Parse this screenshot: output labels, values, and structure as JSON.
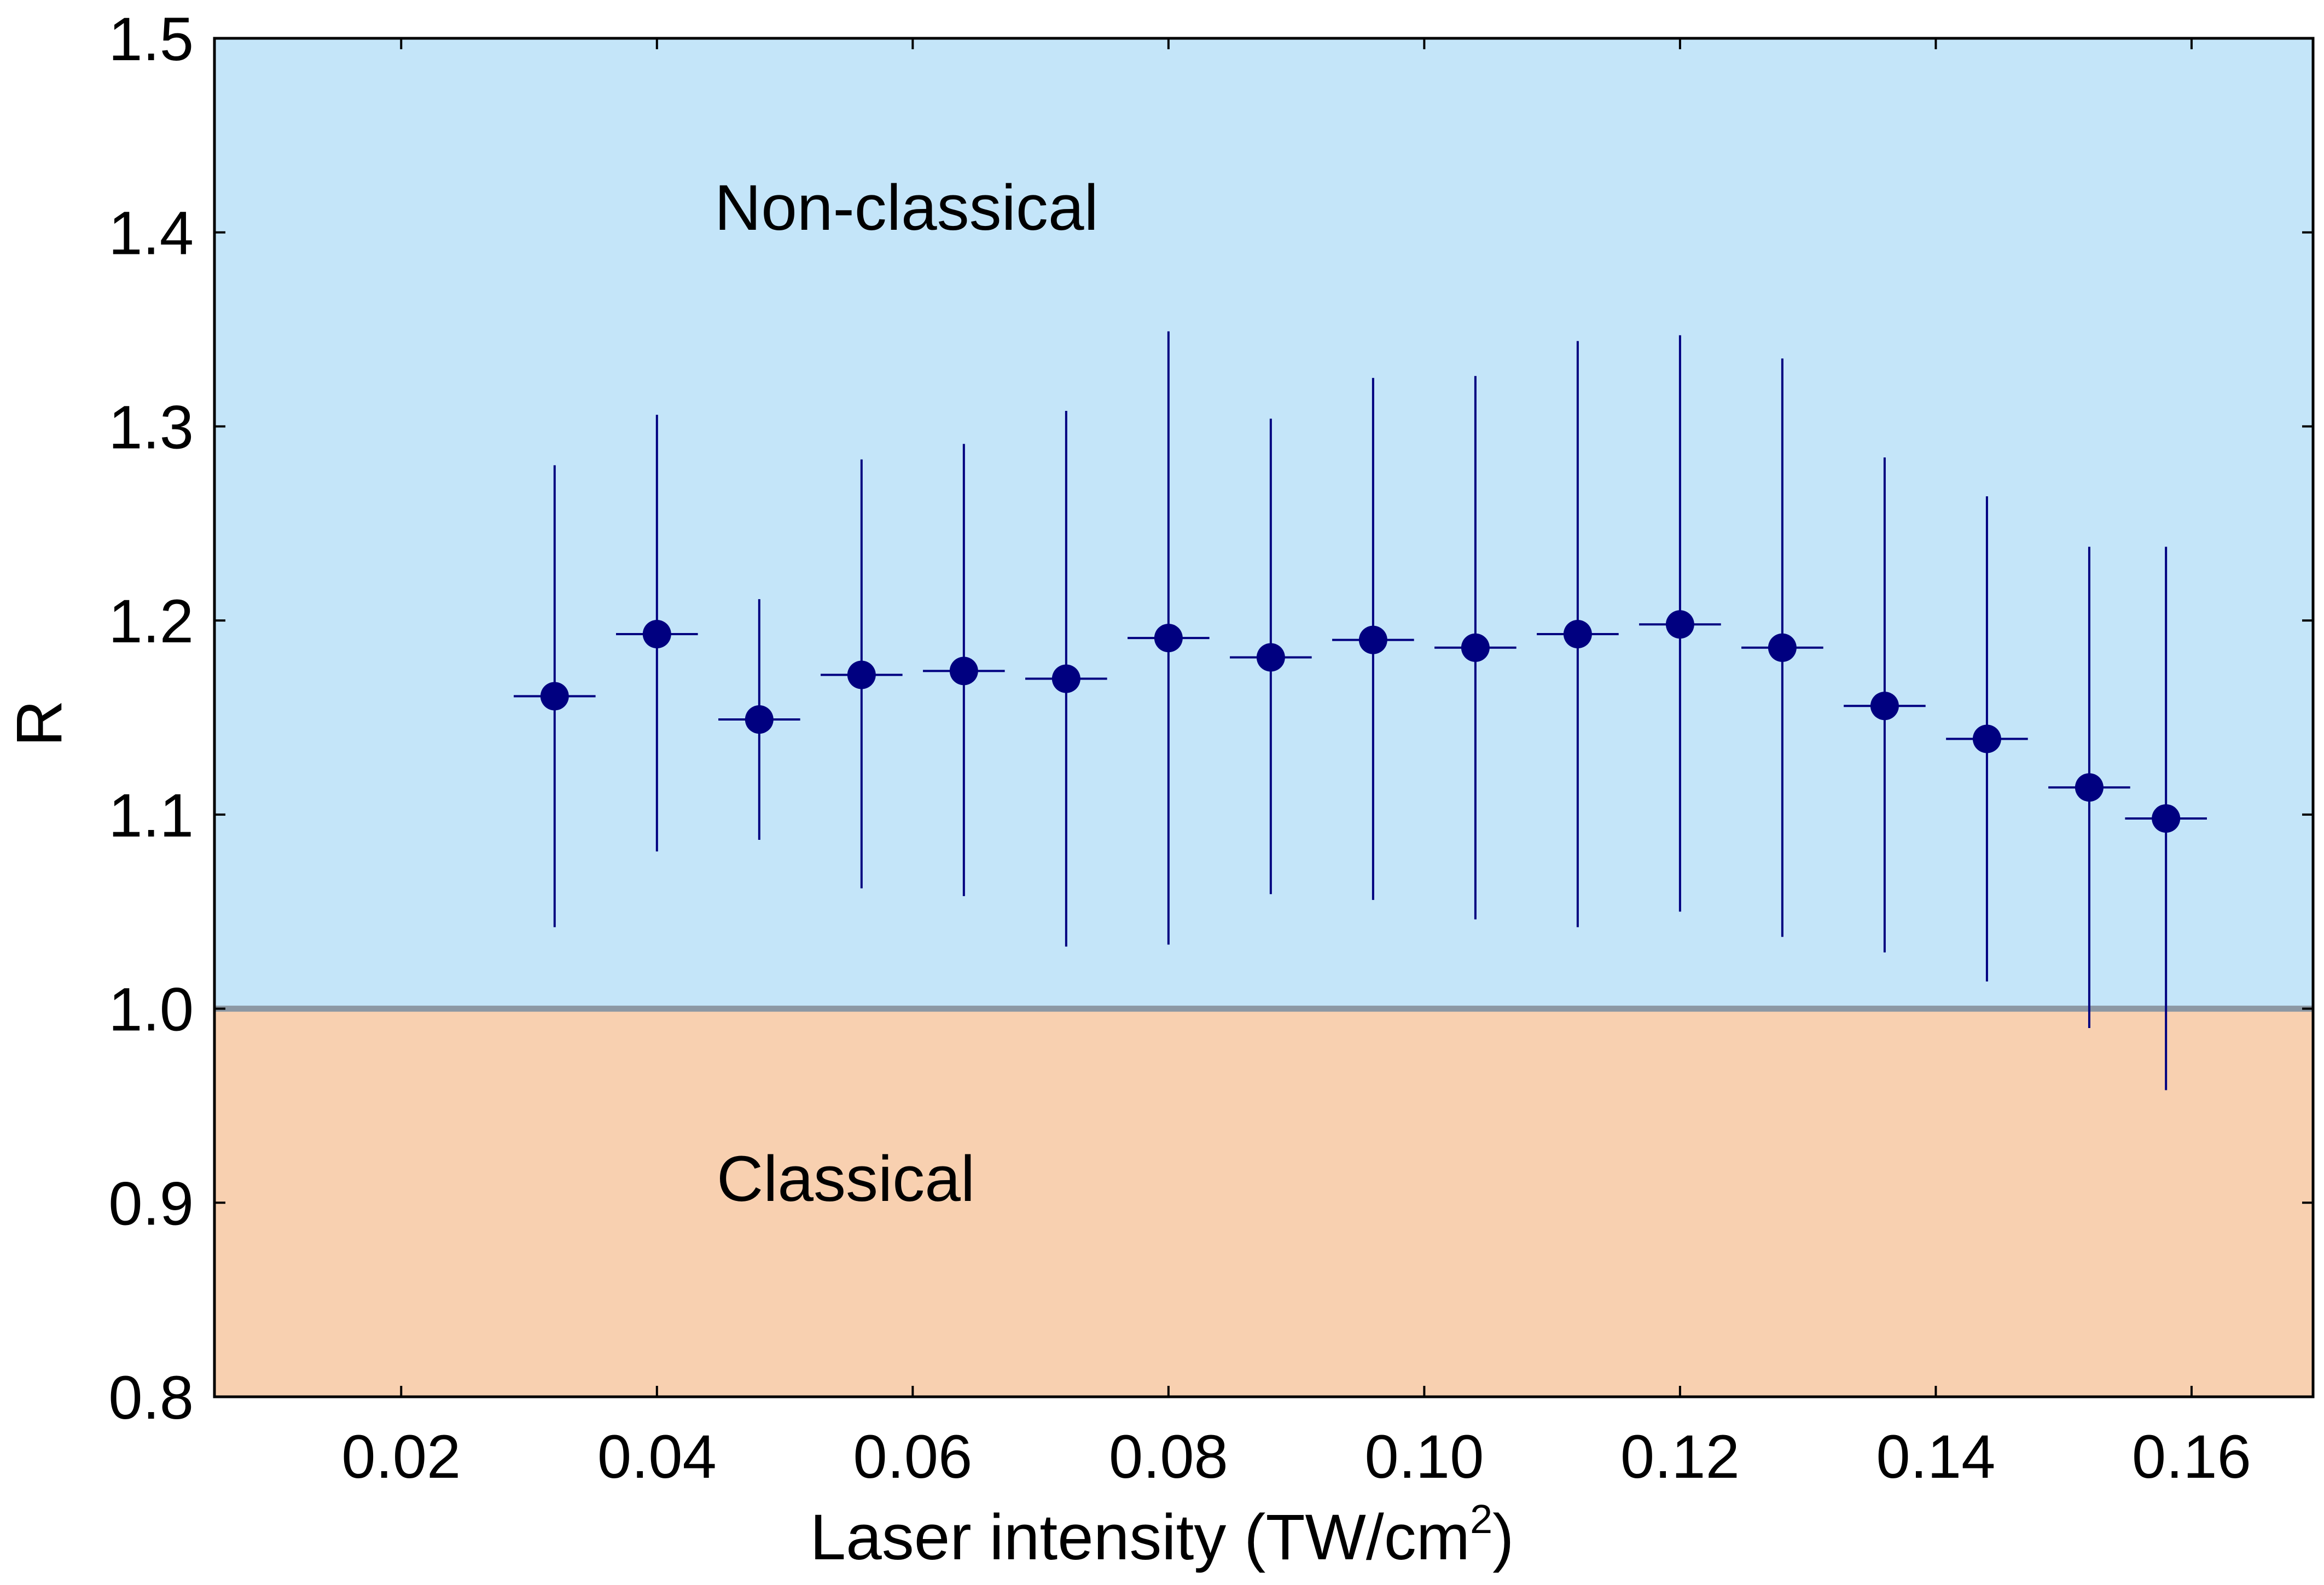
{
  "chart_data": {
    "type": "scatter",
    "xlabel": "Laser intensity (TW/cm",
    "xlabel_sup": "2",
    "xlabel_suffix": ")",
    "ylabel": "R",
    "xlim": [
      0.0054,
      0.1695
    ],
    "ylim": [
      0.8,
      1.5
    ],
    "x_ticks": [
      "0.02",
      "0.04",
      "0.06",
      "0.08",
      "0.10",
      "0.12",
      "0.14",
      "0.16"
    ],
    "y_ticks": [
      "0.8",
      "0.9",
      "1.0",
      "1.1",
      "1.2",
      "1.3",
      "1.4",
      "1.5"
    ],
    "grid": false,
    "threshold": 1.0,
    "regions": [
      {
        "label": "Non-classical",
        "from": 1.0,
        "to": 1.5,
        "color": "#c4e5f9"
      },
      {
        "label": "Classical",
        "from": 0.8,
        "to": 1.0,
        "color": "#f8d0b0"
      }
    ],
    "colors": {
      "marker": "#000080",
      "threshold_line": "#8c98a4",
      "axis": "#000000"
    },
    "points": [
      {
        "x": 0.032,
        "y": 1.161,
        "y_low": 1.042,
        "y_high": 1.28,
        "x_err": 0.0032
      },
      {
        "x": 0.04,
        "y": 1.193,
        "y_low": 1.081,
        "y_high": 1.306,
        "x_err": 0.0032
      },
      {
        "x": 0.048,
        "y": 1.149,
        "y_low": 1.087,
        "y_high": 1.211,
        "x_err": 0.0032
      },
      {
        "x": 0.056,
        "y": 1.172,
        "y_low": 1.062,
        "y_high": 1.283,
        "x_err": 0.0032
      },
      {
        "x": 0.064,
        "y": 1.174,
        "y_low": 1.058,
        "y_high": 1.291,
        "x_err": 0.0032
      },
      {
        "x": 0.072,
        "y": 1.17,
        "y_low": 1.032,
        "y_high": 1.308,
        "x_err": 0.0032
      },
      {
        "x": 0.08,
        "y": 1.191,
        "y_low": 1.033,
        "y_high": 1.349,
        "x_err": 0.0032
      },
      {
        "x": 0.088,
        "y": 1.181,
        "y_low": 1.059,
        "y_high": 1.304,
        "x_err": 0.0032
      },
      {
        "x": 0.096,
        "y": 1.19,
        "y_low": 1.056,
        "y_high": 1.325,
        "x_err": 0.0032
      },
      {
        "x": 0.104,
        "y": 1.186,
        "y_low": 1.046,
        "y_high": 1.326,
        "x_err": 0.0032
      },
      {
        "x": 0.112,
        "y": 1.193,
        "y_low": 1.042,
        "y_high": 1.344,
        "x_err": 0.0032
      },
      {
        "x": 0.12,
        "y": 1.198,
        "y_low": 1.05,
        "y_high": 1.347,
        "x_err": 0.0032
      },
      {
        "x": 0.128,
        "y": 1.186,
        "y_low": 1.037,
        "y_high": 1.335,
        "x_err": 0.0032
      },
      {
        "x": 0.136,
        "y": 1.156,
        "y_low": 1.029,
        "y_high": 1.284,
        "x_err": 0.0032
      },
      {
        "x": 0.144,
        "y": 1.139,
        "y_low": 1.014,
        "y_high": 1.264,
        "x_err": 0.0032
      },
      {
        "x": 0.152,
        "y": 1.114,
        "y_low": 0.99,
        "y_high": 1.238,
        "x_err": 0.0032
      },
      {
        "x": 0.158,
        "y": 1.098,
        "y_low": 0.958,
        "y_high": 1.238,
        "x_err": 0.0032
      }
    ]
  }
}
